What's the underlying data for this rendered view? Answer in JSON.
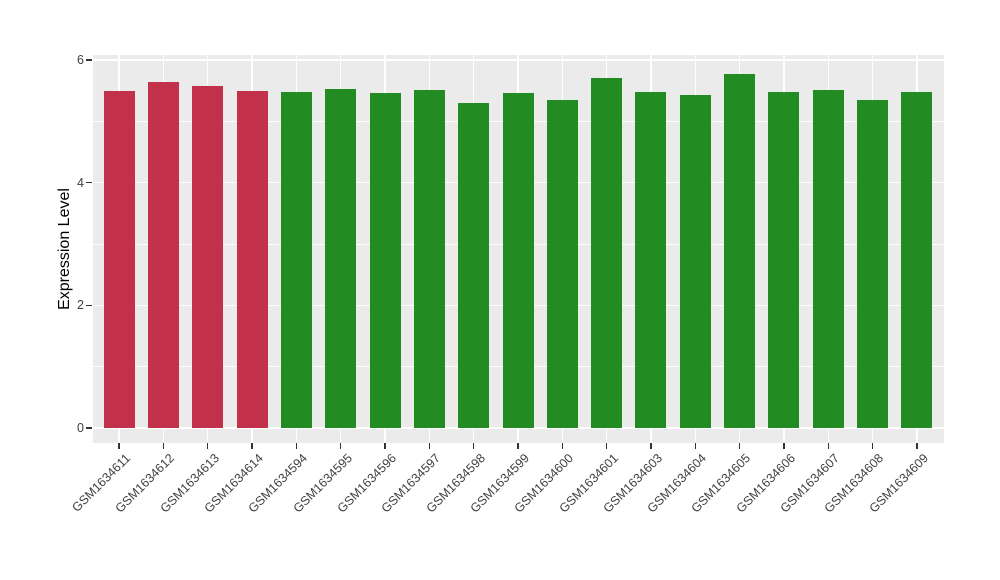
{
  "chart_data": {
    "type": "bar",
    "title": "",
    "xlabel": "",
    "ylabel": "Expression Level",
    "ylim": [
      0,
      6.1
    ],
    "yticks": [
      0,
      2,
      4,
      6
    ],
    "yticks_minor": [
      1,
      3,
      5
    ],
    "grid": true,
    "legend_position": "none",
    "panel_bg": "#EBEBEB",
    "gridline_color": "#FFFFFF",
    "tick_color": "#333333",
    "axis_text_color": "#404040",
    "highlight_color": "#C23049",
    "base_color": "#228B22",
    "categories": [
      "GSM1634611",
      "GSM1634612",
      "GSM1634613",
      "GSM1634614",
      "GSM1634594",
      "GSM1634595",
      "GSM1634596",
      "GSM1634597",
      "GSM1634598",
      "GSM1634599",
      "GSM1634600",
      "GSM1634601",
      "GSM1634603",
      "GSM1634604",
      "GSM1634605",
      "GSM1634606",
      "GSM1634607",
      "GSM1634608",
      "GSM1634609"
    ],
    "values": [
      5.5,
      5.64,
      5.58,
      5.49,
      5.48,
      5.53,
      5.46,
      5.51,
      5.3,
      5.47,
      5.35,
      5.7,
      5.48,
      5.43,
      5.78,
      5.48,
      5.51,
      5.35,
      5.48
    ],
    "bar_colors": [
      "#C23049",
      "#C23049",
      "#C23049",
      "#C23049",
      "#228B22",
      "#228B22",
      "#228B22",
      "#228B22",
      "#228B22",
      "#228B22",
      "#228B22",
      "#228B22",
      "#228B22",
      "#228B22",
      "#228B22",
      "#228B22",
      "#228B22",
      "#228B22",
      "#228B22"
    ]
  }
}
